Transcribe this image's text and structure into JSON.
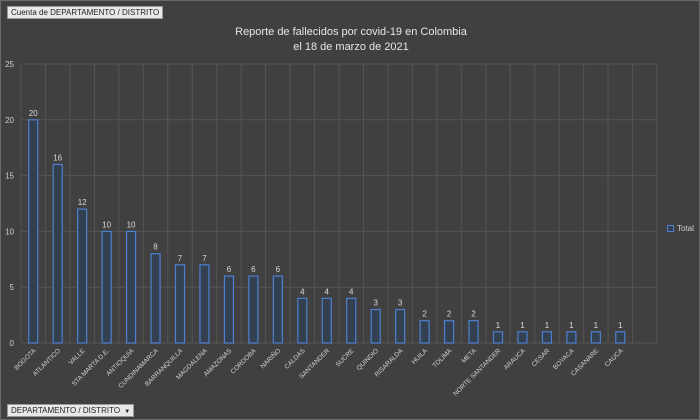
{
  "pivot_value_button": "Cuenta de DEPARTAMENTO / DISTRITO",
  "pivot_axis_button": "DEPARTAMENTO / DISTRITO",
  "pivot_axis_dropdown_icon": "triangle-down",
  "colors": {
    "background": "#404040",
    "bar_outline": "#4f7fd0",
    "bar_fill": "#33404f",
    "grid": "#555555"
  },
  "chart_data": {
    "type": "bar",
    "title_lines": [
      "Reporte de fallecidos por covid-19 en Colombia",
      "el 18 de marzo de 2021"
    ],
    "categories": [
      "BOGOTA",
      "ATLANTICO",
      "VALLE",
      "STA MARTA D.E.",
      "ANTIOQUIA",
      "CUNDINAMARCA",
      "BARRANQUILLA",
      "MAGDALENA",
      "AMAZONAS",
      "CORDOBA",
      "NARIÑO",
      "CALDAS",
      "SANTANDER",
      "SUCRE",
      "QUINDIO",
      "RISARALDA",
      "HUILA",
      "TOLIMA",
      "META",
      "NORTE SANTANDER",
      "ARAUCA",
      "CESAR",
      "BOYACA",
      "CASANARE",
      "CAUCA"
    ],
    "series": [
      {
        "name": "Total",
        "values": [
          20,
          16,
          12,
          10,
          10,
          8,
          7,
          7,
          6,
          6,
          6,
          4,
          4,
          4,
          3,
          3,
          2,
          2,
          2,
          1,
          1,
          1,
          1,
          1,
          1
        ]
      }
    ],
    "yticks": [
      0,
      5,
      10,
      15,
      20,
      25
    ],
    "ylim": [
      0,
      25
    ],
    "grid": true,
    "legend": "right",
    "data_labels": true
  }
}
